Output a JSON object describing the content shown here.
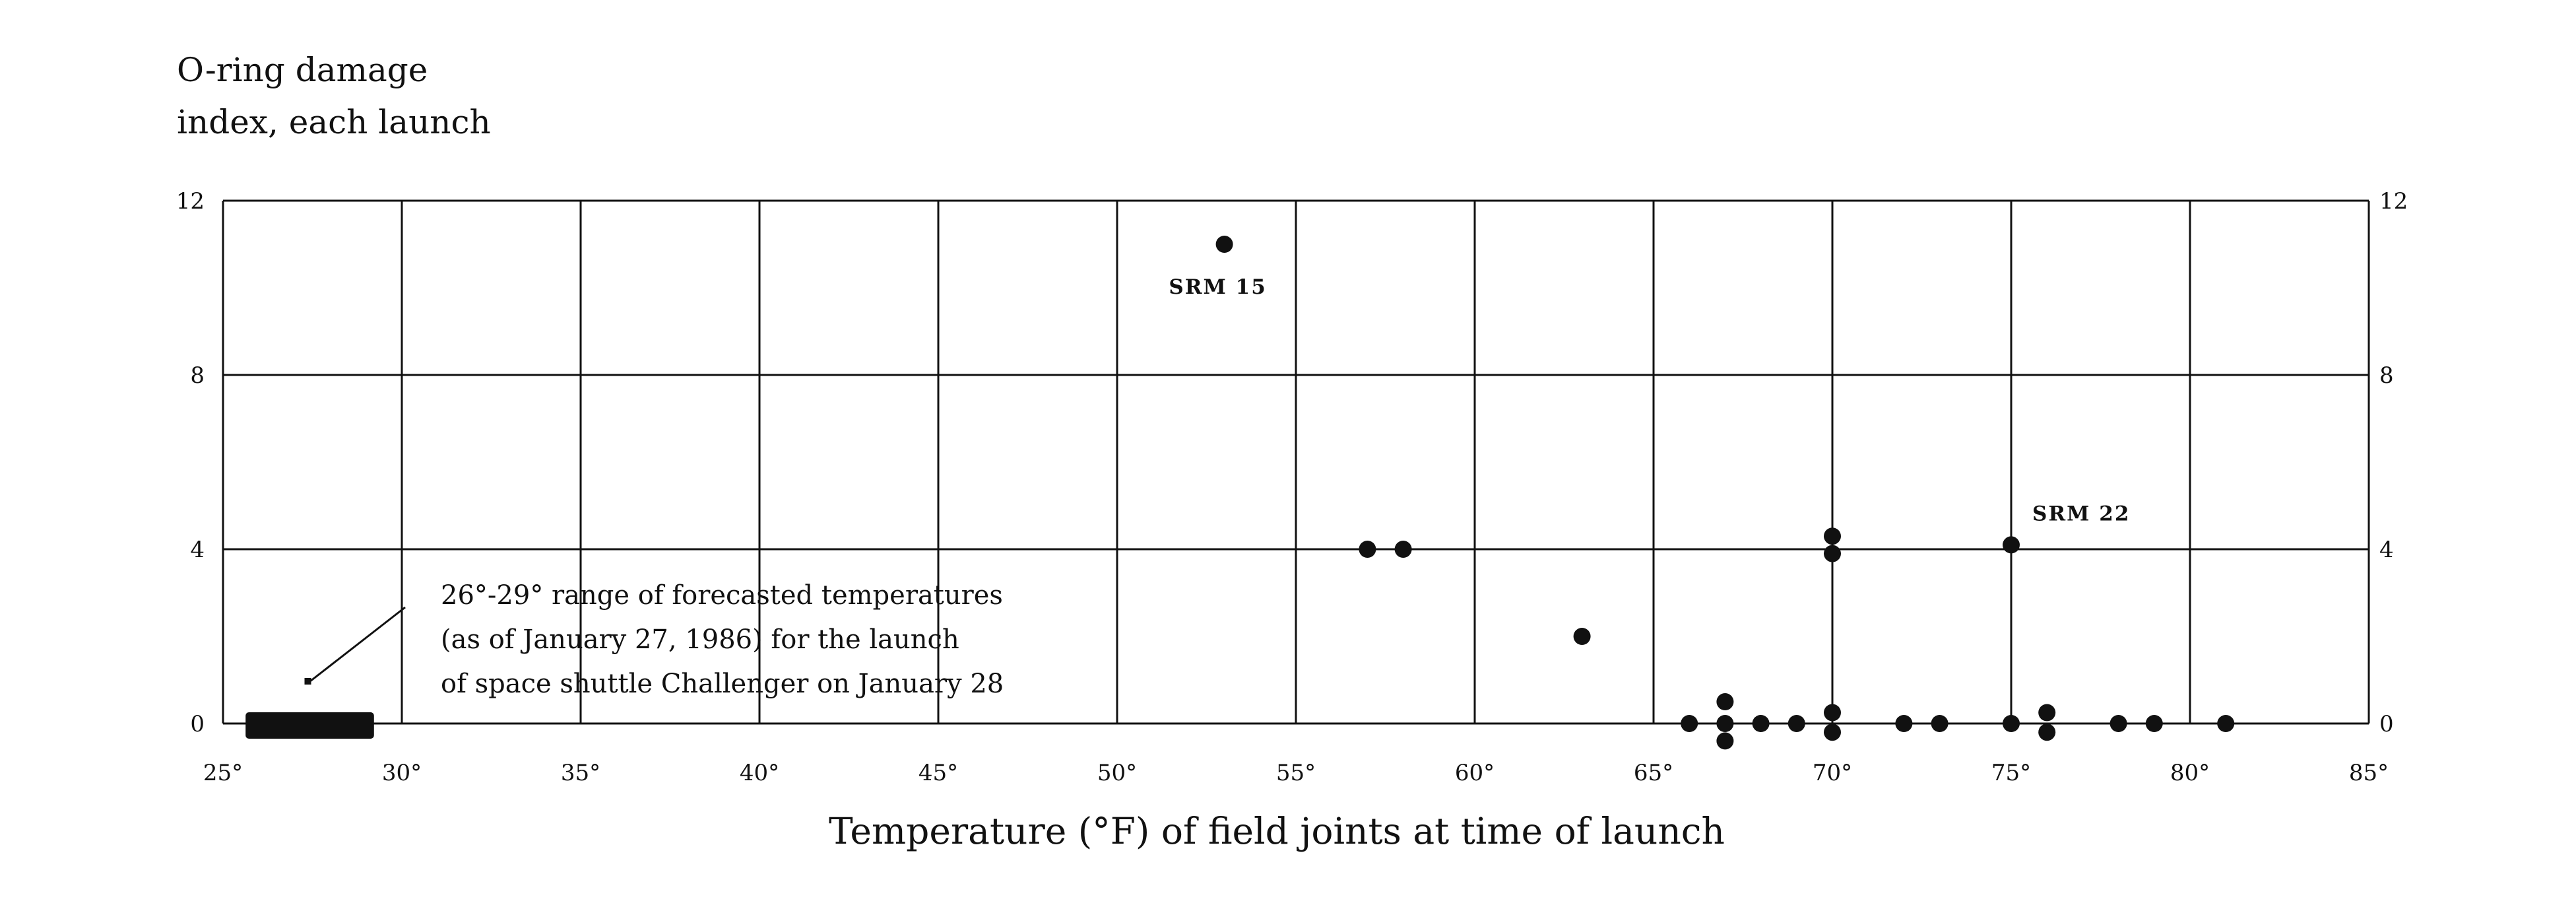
{
  "chart_data": {
    "type": "scatter",
    "title": "",
    "ylabel_lines": [
      "O-ring damage",
      "index, each launch"
    ],
    "xlabel": "Temperature (°F) of field joints at time of launch",
    "xlim": [
      25,
      85
    ],
    "ylim": [
      0,
      12
    ],
    "x_ticks": [
      25,
      30,
      35,
      40,
      45,
      50,
      55,
      60,
      65,
      70,
      75,
      80,
      85
    ],
    "x_tick_labels": [
      "25°",
      "30°",
      "35°",
      "40°",
      "45°",
      "50°",
      "55°",
      "60°",
      "65°",
      "70°",
      "75°",
      "80°",
      "85°"
    ],
    "y_ticks": [
      0,
      4,
      8,
      12
    ],
    "y_tick_labels": [
      "0",
      "4",
      "8",
      "12"
    ],
    "grid": true,
    "right_axis_labels": true,
    "points": [
      {
        "x": 53,
        "y": 11
      },
      {
        "x": 57,
        "y": 4
      },
      {
        "x": 58,
        "y": 4
      },
      {
        "x": 63,
        "y": 2
      },
      {
        "x": 66,
        "y": 0
      },
      {
        "x": 67,
        "y": 0.5
      },
      {
        "x": 67,
        "y": 0
      },
      {
        "x": 67,
        "y": -0.4
      },
      {
        "x": 68,
        "y": 0
      },
      {
        "x": 69,
        "y": 0
      },
      {
        "x": 70,
        "y": 4.3
      },
      {
        "x": 70,
        "y": 3.9
      },
      {
        "x": 70,
        "y": 0.25
      },
      {
        "x": 70,
        "y": -0.2
      },
      {
        "x": 72,
        "y": 0
      },
      {
        "x": 73,
        "y": 0
      },
      {
        "x": 75,
        "y": 4.1
      },
      {
        "x": 75,
        "y": 0
      },
      {
        "x": 76,
        "y": 0.25
      },
      {
        "x": 76,
        "y": -0.2
      },
      {
        "x": 78,
        "y": 0
      },
      {
        "x": 79,
        "y": 0
      },
      {
        "x": 81,
        "y": 0
      }
    ],
    "point_labels": [
      {
        "text": "SRM 15",
        "x": 53,
        "y": 11
      },
      {
        "text": "SRM 22",
        "x": 75,
        "y": 4.1
      }
    ],
    "forecast_range": {
      "x_start": 26,
      "x_end": 29,
      "note_lines": [
        "26°-29° range of forecasted temperatures",
        "(as of January 27, 1986) for the launch",
        "of space shuttle Challenger on January 28"
      ]
    },
    "colors": {
      "marks": "#111111",
      "grid": "#111111",
      "background": "#ffffff"
    }
  }
}
